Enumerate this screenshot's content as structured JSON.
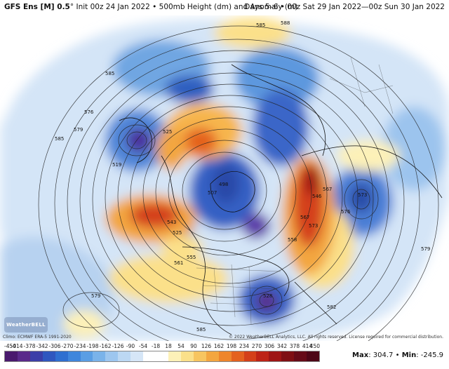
{
  "header": {
    "model": "GFS Ens [M] 0.5",
    "degree": "°",
    "init": "Init 00z 24 Jan 2022",
    "field": "500mb Height (dm) and Anomaly (m)",
    "separator": "•",
    "valid": "Days 5–6 • 00z Sat 29 Jan 2022—00z Sun 30 Jan 2022"
  },
  "map": {
    "contour_labels": [
      "585",
      "588",
      "585",
      "576",
      "579",
      "585",
      "525",
      "519",
      "543",
      "555",
      "561",
      "498",
      "507",
      "525",
      "558",
      "567",
      "573",
      "567",
      "573",
      "576",
      "528",
      "579",
      "582",
      "585",
      "579",
      "546"
    ],
    "logo_text": "WeatherBELL",
    "climo_credit": "Climo: ECMWF ERA-5 1991-2020",
    "copyright": "© 2022 WeatherBELL Analytics, LLC. All rights reserved. License required for commercial distribution."
  },
  "colorbar": {
    "ticks": [
      "-450",
      "-414",
      "-378",
      "-342",
      "-306",
      "-270",
      "-234",
      "-198",
      "-162",
      "-126",
      "-90",
      "-54",
      "-18",
      "18",
      "54",
      "90",
      "126",
      "162",
      "198",
      "234",
      "270",
      "306",
      "342",
      "378",
      "414",
      "450"
    ],
    "colors": [
      "#4a1a6e",
      "#5a2a8a",
      "#3b3fa8",
      "#2f57bf",
      "#2f6fd0",
      "#3f86dc",
      "#5a9ee4",
      "#7ab3ea",
      "#9dc6ef",
      "#bcd8f3",
      "#d6e6f7",
      "#ffffff",
      "#ffffff",
      "#fdf1b8",
      "#fbe08a",
      "#f7c560",
      "#f3a640",
      "#ee852c",
      "#e4621f",
      "#d4401a",
      "#bd2317",
      "#9e1515",
      "#7f0f14",
      "#660b18",
      "#4d0717"
    ]
  },
  "stats": {
    "max_label": "Max",
    "max_value": "304.7",
    "bullet": "•",
    "min_label": "Min",
    "min_value": "-245.9"
  }
}
